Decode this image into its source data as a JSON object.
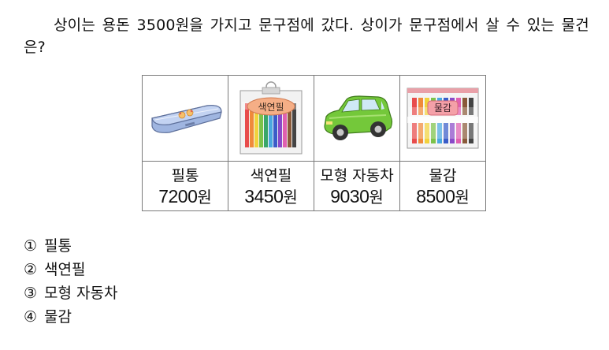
{
  "question": "상이는 용돈 3500원을 가지고 문구점에 갔다. 상이가 문구점에서 살 수 있는 물건은?",
  "items": [
    {
      "name": "필통",
      "price": "7200",
      "unit": "원",
      "icon": "pencil-case-icon"
    },
    {
      "name": "색연필",
      "price": "3450",
      "unit": "원",
      "icon": "colored-pencils-icon",
      "image_label": "색연필"
    },
    {
      "name": "모형 자동차",
      "price": "9030",
      "unit": "원",
      "icon": "toy-car-icon"
    },
    {
      "name": "물감",
      "price": "8500",
      "unit": "원",
      "icon": "paint-set-icon",
      "image_label": "물감"
    }
  ],
  "choices": [
    {
      "marker": "①",
      "text": "필통"
    },
    {
      "marker": "②",
      "text": "색연필"
    },
    {
      "marker": "③",
      "text": "모형 자동차"
    },
    {
      "marker": "④",
      "text": "물감"
    }
  ],
  "colors": {
    "pencil_case": "#a9bfe6",
    "pencil_label": "#f6b08a",
    "car": "#74c83a",
    "paint_label": "#f4a0a8",
    "border": "#7a7a7a"
  }
}
